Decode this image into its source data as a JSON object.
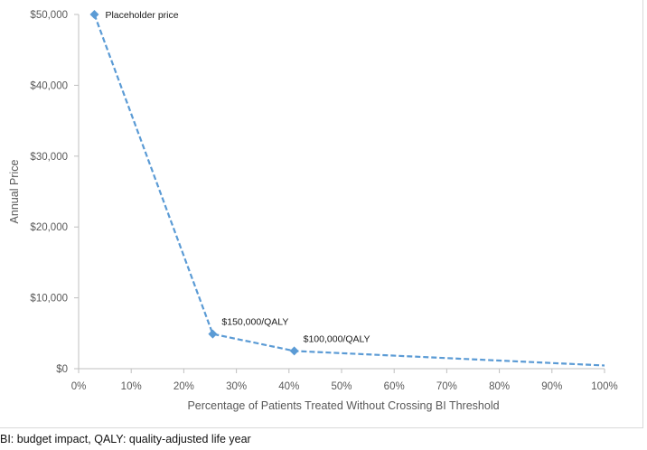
{
  "chart_data": {
    "type": "line",
    "title": "",
    "xlabel": "Percentage of Patients Treated Without Crossing BI Threshold",
    "ylabel": "Annual Price",
    "xlim": [
      0,
      100
    ],
    "ylim": [
      0,
      50000
    ],
    "x_ticks": [
      "0%",
      "10%",
      "20%",
      "30%",
      "40%",
      "50%",
      "60%",
      "70%",
      "80%",
      "90%",
      "100%"
    ],
    "y_ticks": [
      "$0",
      "$10,000",
      "$20,000",
      "$30,000",
      "$40,000",
      "$50,000"
    ],
    "grid": "none",
    "series": [
      {
        "name": "Annual Price",
        "color": "#5b9bd5",
        "line_style": "dashed",
        "x": [
          3,
          25.5,
          41,
          100
        ],
        "values": [
          50000,
          4900,
          2500,
          450
        ]
      }
    ],
    "markers": [
      {
        "x": 3,
        "y": 50000,
        "label": "Placeholder price"
      },
      {
        "x": 25.5,
        "y": 4900,
        "label": "$150,000/QALY"
      },
      {
        "x": 41,
        "y": 2500,
        "label": "$100,000/QALY"
      }
    ]
  },
  "footnote": "BI: budget impact, QALY: quality-adjusted life year"
}
